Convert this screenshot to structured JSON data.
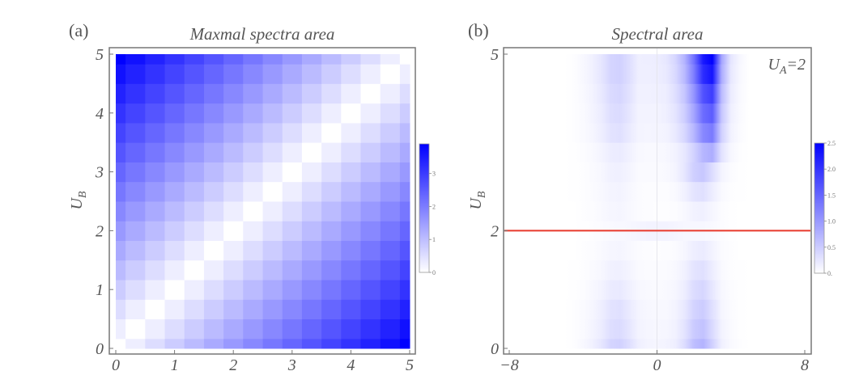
{
  "chart_data": [
    {
      "type": "heatmap",
      "panel_label": "(a)",
      "title": "Maxmal spectra area",
      "xlabel": "",
      "ylabel": "U_B",
      "xlim": [
        0,
        5
      ],
      "ylim": [
        0,
        5
      ],
      "x": [
        0,
        0.333,
        0.667,
        1,
        1.333,
        1.667,
        2,
        2.333,
        2.667,
        3,
        3.333,
        3.667,
        4,
        4.333,
        4.667,
        5
      ],
      "y": [
        0,
        0.333,
        0.667,
        1,
        1.333,
        1.667,
        2,
        2.333,
        2.667,
        3,
        3.333,
        3.667,
        4,
        4.333,
        4.667,
        5
      ],
      "x_ticks": [
        "0",
        "1",
        "2",
        "3",
        "4",
        "5"
      ],
      "y_ticks": [
        "0",
        "1",
        "2",
        "3",
        "4",
        "5"
      ],
      "colorbar": {
        "min": 0,
        "max": 3.9,
        "ticks": [
          "0",
          "1",
          "2",
          "3"
        ],
        "low_color": "#ffffff",
        "high_color": "#0000ff"
      },
      "values": [
        [
          0,
          0.26,
          0.52,
          0.78,
          1.04,
          1.3,
          1.56,
          1.82,
          2.08,
          2.34,
          2.6,
          2.86,
          3.12,
          3.38,
          3.64,
          3.9
        ],
        [
          0.26,
          0,
          0.26,
          0.52,
          0.78,
          1.04,
          1.3,
          1.56,
          1.82,
          2.08,
          2.34,
          2.6,
          2.86,
          3.12,
          3.38,
          3.64
        ],
        [
          0.52,
          0.26,
          0,
          0.26,
          0.52,
          0.78,
          1.04,
          1.3,
          1.56,
          1.82,
          2.08,
          2.34,
          2.6,
          2.86,
          3.12,
          3.38
        ],
        [
          0.78,
          0.52,
          0.26,
          0,
          0.26,
          0.52,
          0.78,
          1.04,
          1.3,
          1.56,
          1.82,
          2.08,
          2.34,
          2.6,
          2.86,
          3.12
        ],
        [
          1.04,
          0.78,
          0.52,
          0.26,
          0,
          0.26,
          0.52,
          0.78,
          1.04,
          1.3,
          1.56,
          1.82,
          2.08,
          2.34,
          2.6,
          2.86
        ],
        [
          1.3,
          1.04,
          0.78,
          0.52,
          0.26,
          0,
          0.26,
          0.52,
          0.78,
          1.04,
          1.3,
          1.56,
          1.82,
          2.08,
          2.34,
          2.6
        ],
        [
          1.56,
          1.3,
          1.04,
          0.78,
          0.52,
          0.26,
          0,
          0.26,
          0.52,
          0.78,
          1.04,
          1.3,
          1.56,
          1.82,
          2.08,
          2.34
        ],
        [
          1.82,
          1.56,
          1.3,
          1.04,
          0.78,
          0.52,
          0.26,
          0,
          0.26,
          0.52,
          0.78,
          1.04,
          1.3,
          1.56,
          1.82,
          2.08
        ],
        [
          2.08,
          1.82,
          1.56,
          1.3,
          1.04,
          0.78,
          0.52,
          0.26,
          0,
          0.26,
          0.52,
          0.78,
          1.04,
          1.3,
          1.56,
          1.82
        ],
        [
          2.34,
          2.08,
          1.82,
          1.56,
          1.3,
          1.04,
          0.78,
          0.52,
          0.26,
          0,
          0.26,
          0.52,
          0.78,
          1.04,
          1.3,
          1.56
        ],
        [
          2.6,
          2.34,
          2.08,
          1.82,
          1.56,
          1.3,
          1.04,
          0.78,
          0.52,
          0.26,
          0,
          0.26,
          0.52,
          0.78,
          1.04,
          1.3
        ],
        [
          2.86,
          2.6,
          2.34,
          2.08,
          1.82,
          1.56,
          1.3,
          1.04,
          0.78,
          0.52,
          0.26,
          0,
          0.26,
          0.52,
          0.78,
          1.04
        ],
        [
          3.12,
          2.86,
          2.6,
          2.34,
          2.08,
          1.82,
          1.56,
          1.3,
          1.04,
          0.78,
          0.52,
          0.26,
          0,
          0.26,
          0.52,
          0.78
        ],
        [
          3.38,
          3.12,
          2.86,
          2.6,
          2.34,
          2.08,
          1.82,
          1.56,
          1.3,
          1.04,
          0.78,
          0.52,
          0.26,
          0,
          0.26,
          0.52
        ],
        [
          3.64,
          3.38,
          3.12,
          2.86,
          2.6,
          2.34,
          2.08,
          1.82,
          1.56,
          1.3,
          1.04,
          0.78,
          0.52,
          0.26,
          0,
          0.26
        ],
        [
          3.9,
          3.64,
          3.38,
          3.12,
          2.86,
          2.6,
          2.34,
          2.08,
          1.82,
          1.56,
          1.3,
          1.04,
          0.78,
          0.52,
          0.26,
          0
        ]
      ]
    },
    {
      "type": "heatmap",
      "panel_label": "(b)",
      "title": "Spectral area",
      "annotation": "U_A=2",
      "xlabel": "",
      "ylabel": "U_B",
      "xlim": [
        -8,
        8
      ],
      "ylim": [
        0,
        5
      ],
      "x_ticks": [
        "−8",
        "0",
        "8"
      ],
      "y_ticks": [
        "0",
        "2",
        "5"
      ],
      "reference_line": {
        "y": 2,
        "color": "#e8392b"
      },
      "colorbar": {
        "min": 0,
        "max": 2.5,
        "ticks": [
          "0.",
          "0.5",
          "1.0",
          "1.5",
          "2.0",
          "2.5"
        ],
        "low_color": "#ffffff",
        "high_color": "#0000ff"
      },
      "x": [
        -5,
        -4.5,
        -4,
        -3.5,
        -3,
        -2.5,
        -2,
        -1.5,
        -1,
        -0.5,
        0,
        0.5,
        1,
        1.5,
        2,
        2.5,
        3,
        3.5,
        4,
        4.5,
        5
      ],
      "y": [
        0,
        0.333,
        0.667,
        1,
        1.333,
        1.667,
        2,
        2.333,
        2.667,
        3,
        3.333,
        3.667,
        4,
        4.333,
        4.667,
        5
      ],
      "values": [
        [
          0,
          0.02,
          0.07,
          0.14,
          0.25,
          0.41,
          0.45,
          0.32,
          0.16,
          0.11,
          0.1,
          0.12,
          0.17,
          0.34,
          0.64,
          0.75,
          0.45,
          0.15,
          0.06,
          0.02,
          0
        ],
        [
          0,
          0.02,
          0.05,
          0.11,
          0.19,
          0.32,
          0.35,
          0.25,
          0.12,
          0.09,
          0.08,
          0.09,
          0.14,
          0.27,
          0.51,
          0.6,
          0.36,
          0.12,
          0.05,
          0.01,
          0
        ],
        [
          0,
          0.02,
          0.05,
          0.09,
          0.17,
          0.27,
          0.3,
          0.21,
          0.11,
          0.08,
          0.07,
          0.07,
          0.12,
          0.23,
          0.43,
          0.5,
          0.3,
          0.1,
          0.04,
          0.01,
          0
        ],
        [
          0,
          0.01,
          0.03,
          0.07,
          0.12,
          0.2,
          0.22,
          0.15,
          0.08,
          0.06,
          0.05,
          0.06,
          0.09,
          0.18,
          0.34,
          0.4,
          0.24,
          0.08,
          0.03,
          0.01,
          0
        ],
        [
          0,
          0.01,
          0.02,
          0.05,
          0.08,
          0.14,
          0.15,
          0.11,
          0.05,
          0.04,
          0.04,
          0.04,
          0.07,
          0.14,
          0.26,
          0.3,
          0.18,
          0.06,
          0.02,
          0.01,
          0
        ],
        [
          0,
          0,
          0.02,
          0.03,
          0.06,
          0.09,
          0.1,
          0.07,
          0.04,
          0.03,
          0.02,
          0.03,
          0.04,
          0.09,
          0.17,
          0.2,
          0.12,
          0.04,
          0.02,
          0,
          0
        ],
        [
          0,
          0,
          0.01,
          0.02,
          0.04,
          0.06,
          0.07,
          0.08,
          0.1,
          0.12,
          0.12,
          0.12,
          0.1,
          0.08,
          0.08,
          0.08,
          0.06,
          0.03,
          0.01,
          0,
          0
        ],
        [
          0,
          0,
          0.02,
          0.03,
          0.06,
          0.09,
          0.1,
          0.07,
          0.04,
          0.03,
          0.02,
          0.02,
          0.03,
          0.07,
          0.13,
          0.15,
          0.09,
          0.03,
          0.01,
          0,
          0
        ],
        [
          0,
          0.01,
          0.02,
          0.04,
          0.07,
          0.11,
          0.12,
          0.08,
          0.04,
          0.03,
          0.03,
          0.03,
          0.06,
          0.14,
          0.26,
          0.3,
          0.18,
          0.06,
          0.02,
          0.01,
          0
        ],
        [
          0,
          0.01,
          0.02,
          0.05,
          0.08,
          0.14,
          0.15,
          0.11,
          0.05,
          0.05,
          0.05,
          0.06,
          0.11,
          0.25,
          0.47,
          0.55,
          0.33,
          0.11,
          0.04,
          0.01,
          0
        ],
        [
          0,
          0.01,
          0.03,
          0.06,
          0.11,
          0.18,
          0.2,
          0.14,
          0.07,
          0.06,
          0.06,
          0.08,
          0.13,
          0.24,
          0.44,
          0.72,
          0.8,
          0.28,
          0.08,
          0.02,
          0
        ],
        [
          0,
          0.02,
          0.05,
          0.09,
          0.17,
          0.27,
          0.3,
          0.21,
          0.11,
          0.1,
          0.11,
          0.12,
          0.22,
          0.39,
          0.72,
          1.17,
          1.3,
          0.46,
          0.13,
          0.04,
          0
        ],
        [
          0,
          0.02,
          0.05,
          0.11,
          0.19,
          0.32,
          0.35,
          0.25,
          0.12,
          0.12,
          0.12,
          0.16,
          0.26,
          0.48,
          0.88,
          1.44,
          1.6,
          0.56,
          0.16,
          0.05,
          0
        ],
        [
          0,
          0.02,
          0.06,
          0.12,
          0.22,
          0.36,
          0.4,
          0.28,
          0.14,
          0.14,
          0.15,
          0.18,
          0.31,
          0.57,
          1.05,
          1.71,
          1.9,
          0.67,
          0.19,
          0.06,
          0
        ],
        [
          0,
          0.02,
          0.07,
          0.14,
          0.25,
          0.41,
          0.45,
          0.32,
          0.16,
          0.16,
          0.17,
          0.22,
          0.37,
          0.69,
          1.27,
          2.07,
          2.3,
          0.81,
          0.23,
          0.07,
          0
        ],
        [
          0,
          0.02,
          0.07,
          0.14,
          0.25,
          0.41,
          0.45,
          0.32,
          0.16,
          0.17,
          0.18,
          0.24,
          0.4,
          0.75,
          1.38,
          2.25,
          2.5,
          0.88,
          0.25,
          0.08,
          0
        ]
      ]
    }
  ]
}
